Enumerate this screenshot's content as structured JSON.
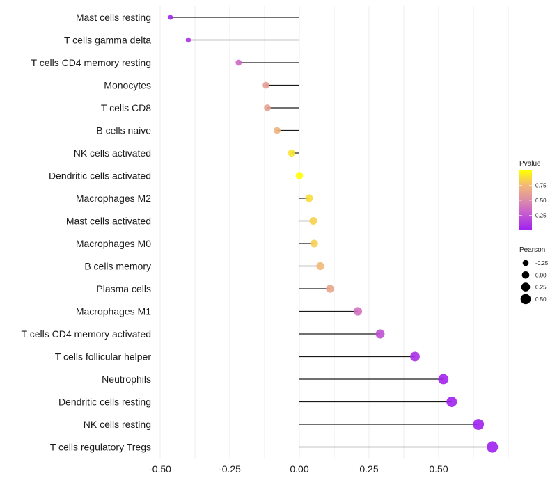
{
  "chart_data": {
    "type": "lollipop",
    "title": "",
    "xlabel": "",
    "ylabel": "",
    "xlim": [
      -0.55,
      0.73
    ],
    "xticks": [
      -0.5,
      -0.25,
      0.0,
      0.25,
      0.5
    ],
    "xtick_labels": [
      "-0.50",
      "-0.25",
      "0.00",
      "0.25",
      "0.50"
    ],
    "grid": true,
    "categories": [
      "Mast cells resting",
      "T cells gamma delta",
      "T cells CD4 memory resting",
      "Monocytes",
      "T cells CD8",
      "B cells naive",
      "NK cells activated",
      "Dendritic cells activated",
      "Macrophages M2",
      "Mast cells activated",
      "Macrophages M0",
      "B cells memory",
      "Plasma cells",
      "Macrophages M1",
      "T cells CD4 memory activated",
      "T cells follicular helper",
      "Neutrophils",
      "Dendritic cells resting",
      "NK cells resting",
      "T cells regulatory  Tregs"
    ],
    "pearson": [
      -0.463,
      -0.399,
      -0.218,
      -0.12,
      -0.115,
      -0.08,
      -0.028,
      0.0,
      0.035,
      0.05,
      0.053,
      0.075,
      0.11,
      0.21,
      0.29,
      0.415,
      0.517,
      0.547,
      0.643,
      0.693
    ],
    "pvalue": [
      0.02,
      0.08,
      0.35,
      0.6,
      0.62,
      0.73,
      0.9,
      1.0,
      0.88,
      0.84,
      0.83,
      0.75,
      0.65,
      0.38,
      0.23,
      0.08,
      0.02,
      0.01,
      0.003,
      0.001
    ],
    "legend": {
      "placement": "right",
      "color": {
        "title": "Pvalue",
        "ticks": [
          0.25,
          0.5,
          0.75
        ],
        "tick_labels": [
          "0.25",
          "0.50",
          "0.75"
        ],
        "range": [
          0,
          1
        ],
        "low_color": "#A020F0",
        "mid_color": "#D982A8",
        "high_color": "#FFFF00"
      },
      "size": {
        "title": "Pearson",
        "values": [
          -0.25,
          0.0,
          0.25,
          0.5
        ],
        "labels": [
          "-0.25",
          "0.00",
          "0.25",
          "0.50"
        ]
      }
    }
  }
}
